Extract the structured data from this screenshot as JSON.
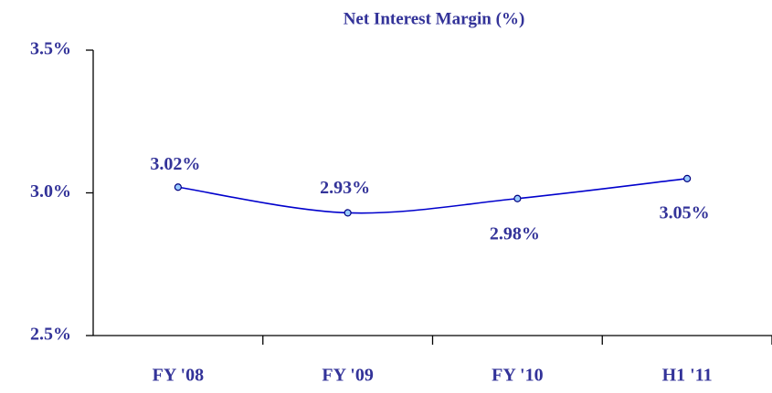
{
  "chart_data": {
    "type": "line",
    "title": "Net Interest Margin (%)",
    "categories": [
      "FY '08",
      "FY '09",
      "FY '10",
      "H1 '11"
    ],
    "series": [
      {
        "name": "Net Interest Margin",
        "color": "#0000cc",
        "values": [
          3.02,
          2.93,
          2.98,
          3.05
        ],
        "value_labels": [
          "3.02%",
          "2.93%",
          "2.98%",
          "3.05%"
        ]
      }
    ],
    "ylim": [
      2.5,
      3.5
    ],
    "yticks": [
      {
        "value": 2.5,
        "label": "2.5%"
      },
      {
        "value": 3.0,
        "label": "3.0%"
      },
      {
        "value": 3.5,
        "label": "3.5%"
      }
    ],
    "grid": false
  }
}
